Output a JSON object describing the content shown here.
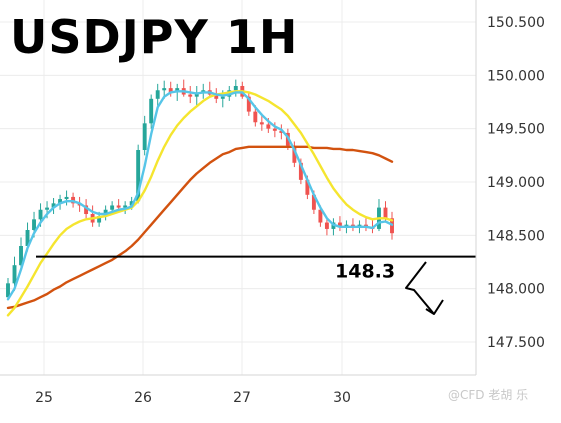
{
  "title": "USDJPY 1H",
  "watermark": "@CFD 老胡 乐",
  "chart_data": {
    "type": "candlestick",
    "title": "USDJPY 1H",
    "y_ticks": [
      "150.500",
      "150.000",
      "149.500",
      "149.000",
      "148.500",
      "148.000",
      "147.500"
    ],
    "ylim": [
      147.25,
      150.7
    ],
    "x_ticks": [
      "25",
      "26",
      "27",
      "30"
    ],
    "grid": true,
    "level": {
      "value": 148.3,
      "label": "148.3",
      "color": "#000000"
    },
    "arrow_direction": "down",
    "colors": {
      "up": "#26a69a",
      "down": "#ef5350",
      "fast_ma": "#56c5e8",
      "mid_ma": "#f5e52f",
      "slow_ma": "#d2520f"
    },
    "candles": [
      [
        147.92,
        148.1,
        147.9,
        148.05
      ],
      [
        148.05,
        148.3,
        147.98,
        148.22
      ],
      [
        148.22,
        148.48,
        148.18,
        148.4
      ],
      [
        148.4,
        148.62,
        148.35,
        148.55
      ],
      [
        148.55,
        148.72,
        148.48,
        148.65
      ],
      [
        148.65,
        148.8,
        148.58,
        148.74
      ],
      [
        148.74,
        148.82,
        148.66,
        148.76
      ],
      [
        148.76,
        148.85,
        148.7,
        148.8
      ],
      [
        148.8,
        148.88,
        148.74,
        148.84
      ],
      [
        148.84,
        148.92,
        148.78,
        148.86
      ],
      [
        148.86,
        148.9,
        148.76,
        148.8
      ],
      [
        148.8,
        148.86,
        148.72,
        148.78
      ],
      [
        148.78,
        148.84,
        148.66,
        148.7
      ],
      [
        148.7,
        148.78,
        148.58,
        148.62
      ],
      [
        148.62,
        148.72,
        148.58,
        148.68
      ],
      [
        148.68,
        148.78,
        148.64,
        148.74
      ],
      [
        148.74,
        148.82,
        148.7,
        148.78
      ],
      [
        148.78,
        148.84,
        148.72,
        148.76
      ],
      [
        148.76,
        148.82,
        148.7,
        148.78
      ],
      [
        148.78,
        148.86,
        148.74,
        148.82
      ],
      [
        148.82,
        149.35,
        148.8,
        149.3
      ],
      [
        149.3,
        149.62,
        149.25,
        149.55
      ],
      [
        149.55,
        149.82,
        149.5,
        149.78
      ],
      [
        149.78,
        149.92,
        149.7,
        149.86
      ],
      [
        149.86,
        149.95,
        149.78,
        149.88
      ],
      [
        149.88,
        149.94,
        149.8,
        149.84
      ],
      [
        149.84,
        149.92,
        149.76,
        149.88
      ],
      [
        149.88,
        149.96,
        149.8,
        149.82
      ],
      [
        149.82,
        149.9,
        149.74,
        149.8
      ],
      [
        149.8,
        149.9,
        149.72,
        149.84
      ],
      [
        149.84,
        149.92,
        149.78,
        149.86
      ],
      [
        149.86,
        149.94,
        149.8,
        149.82
      ],
      [
        149.82,
        149.88,
        149.74,
        149.78
      ],
      [
        149.78,
        149.86,
        149.7,
        149.8
      ],
      [
        149.8,
        149.9,
        149.76,
        149.86
      ],
      [
        149.86,
        149.96,
        149.8,
        149.9
      ],
      [
        149.9,
        149.94,
        149.78,
        149.8
      ],
      [
        149.8,
        149.84,
        149.62,
        149.66
      ],
      [
        149.66,
        149.72,
        149.52,
        149.56
      ],
      [
        149.56,
        149.64,
        149.48,
        149.54
      ],
      [
        149.54,
        149.6,
        149.46,
        149.5
      ],
      [
        149.5,
        149.56,
        149.42,
        149.48
      ],
      [
        149.48,
        149.54,
        149.4,
        149.46
      ],
      [
        149.46,
        149.5,
        149.3,
        149.34
      ],
      [
        149.34,
        149.38,
        149.14,
        149.18
      ],
      [
        149.18,
        149.22,
        148.98,
        149.02
      ],
      [
        149.02,
        149.06,
        148.84,
        148.88
      ],
      [
        148.88,
        148.92,
        148.7,
        148.74
      ],
      [
        148.74,
        148.78,
        148.58,
        148.62
      ],
      [
        148.62,
        148.66,
        148.5,
        148.56
      ],
      [
        148.56,
        148.66,
        148.5,
        148.62
      ],
      [
        148.62,
        148.68,
        148.54,
        148.58
      ],
      [
        148.58,
        148.64,
        148.52,
        148.6
      ],
      [
        148.6,
        148.66,
        148.54,
        148.58
      ],
      [
        148.58,
        148.64,
        148.52,
        148.6
      ],
      [
        148.6,
        148.66,
        148.54,
        148.58
      ],
      [
        148.58,
        148.64,
        148.52,
        148.56
      ],
      [
        148.56,
        148.84,
        148.54,
        148.76
      ],
      [
        148.76,
        148.82,
        148.62,
        148.66
      ],
      [
        148.66,
        148.72,
        148.46,
        148.52
      ]
    ],
    "fast_ma": [
      147.9,
      148.0,
      148.18,
      148.38,
      148.52,
      148.62,
      148.7,
      148.76,
      148.8,
      148.82,
      148.82,
      148.8,
      148.76,
      148.72,
      148.7,
      148.7,
      148.72,
      148.74,
      148.75,
      148.77,
      148.9,
      149.15,
      149.45,
      149.7,
      149.8,
      149.84,
      149.85,
      149.85,
      149.84,
      149.83,
      149.84,
      149.84,
      149.82,
      149.81,
      149.82,
      149.84,
      149.84,
      149.78,
      149.7,
      149.63,
      149.57,
      149.52,
      149.49,
      149.42,
      149.3,
      149.16,
      149.02,
      148.88,
      148.76,
      148.66,
      148.6,
      148.58,
      148.58,
      148.58,
      148.58,
      148.58,
      148.57,
      148.62,
      148.63,
      148.6
    ],
    "mid_ma": [
      147.75,
      147.82,
      147.92,
      148.02,
      148.13,
      148.24,
      148.33,
      148.42,
      148.5,
      148.56,
      148.6,
      148.63,
      148.65,
      148.66,
      148.67,
      148.68,
      148.7,
      148.72,
      148.74,
      148.76,
      148.82,
      148.92,
      149.05,
      149.2,
      149.33,
      149.44,
      149.53,
      149.6,
      149.66,
      149.71,
      149.76,
      149.8,
      149.82,
      149.83,
      149.84,
      149.85,
      149.85,
      149.84,
      149.82,
      149.79,
      149.76,
      149.72,
      149.68,
      149.62,
      149.54,
      149.46,
      149.36,
      149.26,
      149.15,
      149.04,
      148.94,
      148.86,
      148.79,
      148.74,
      148.7,
      148.67,
      148.65,
      148.66,
      148.66,
      148.64
    ],
    "slow_ma": [
      147.82,
      147.83,
      147.85,
      147.87,
      147.89,
      147.92,
      147.95,
      147.99,
      148.02,
      148.06,
      148.09,
      148.12,
      148.15,
      148.18,
      148.21,
      148.24,
      148.27,
      148.31,
      148.35,
      148.4,
      148.46,
      148.53,
      148.6,
      148.67,
      148.74,
      148.81,
      148.88,
      148.95,
      149.02,
      149.08,
      149.13,
      149.18,
      149.22,
      149.26,
      149.28,
      149.31,
      149.32,
      149.33,
      149.33,
      149.33,
      149.33,
      149.33,
      149.33,
      149.33,
      149.33,
      149.33,
      149.33,
      149.32,
      149.32,
      149.32,
      149.31,
      149.31,
      149.3,
      149.3,
      149.29,
      149.28,
      149.27,
      149.25,
      149.22,
      149.19
    ]
  }
}
